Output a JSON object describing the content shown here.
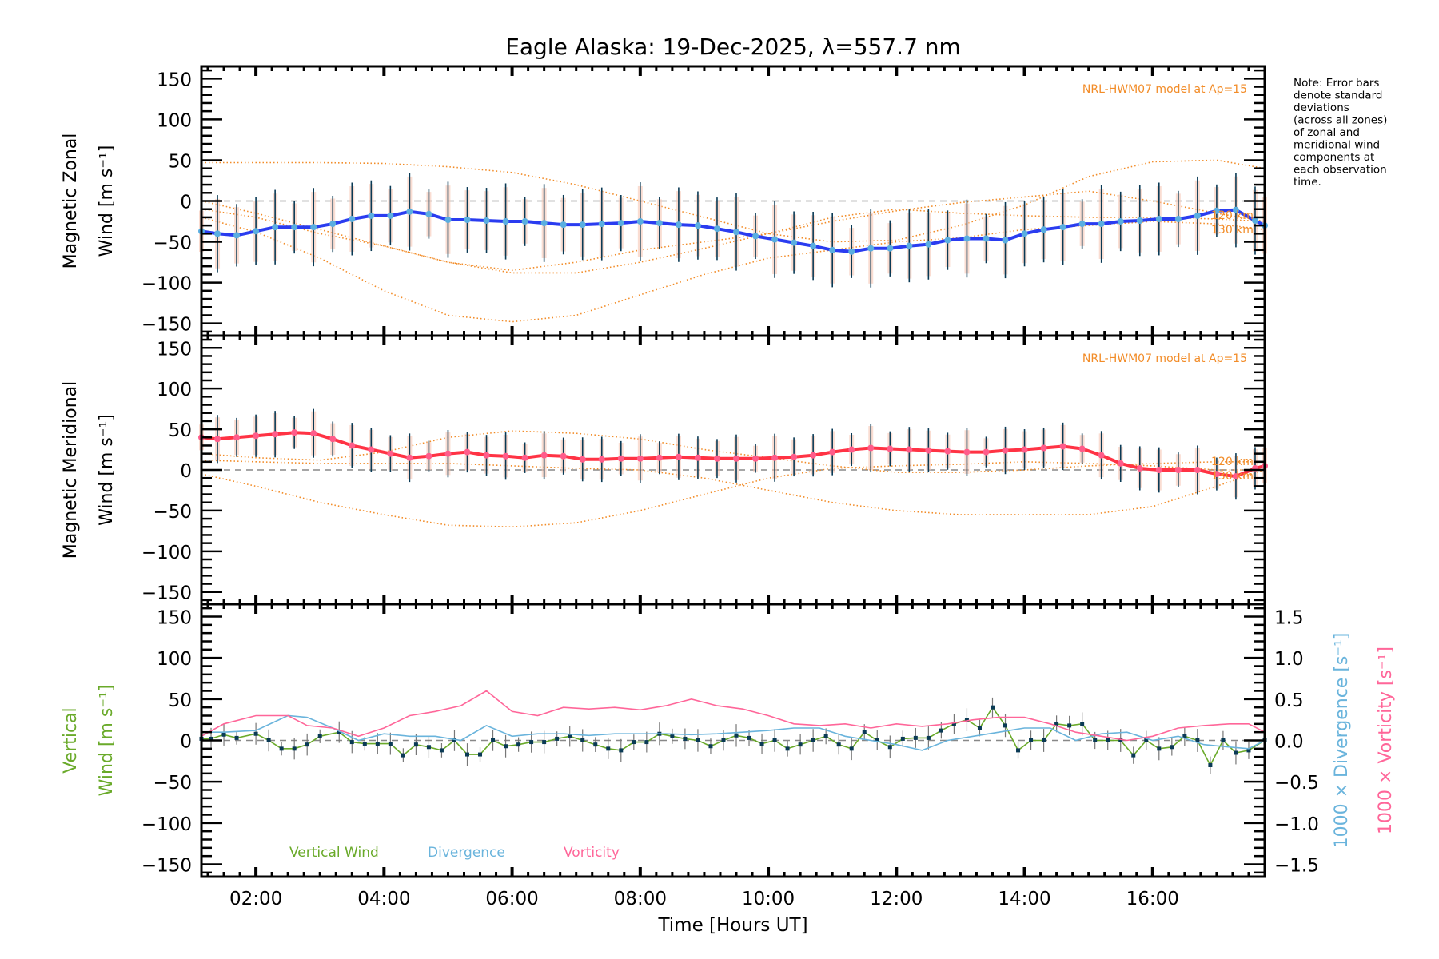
{
  "chart_data": [
    {
      "type": "line",
      "panel": "zonal",
      "title": "Eagle Alaska: 19-Dec-2025, λ=557.7 nm",
      "ylabel_line1": "Magnetic Zonal",
      "ylabel_line2": "Wind [m s⁻¹]",
      "ylim": [
        -165,
        165
      ],
      "yticks": [
        150,
        100,
        50,
        0,
        -50,
        -100,
        -150
      ],
      "model_label": "NRL-HWM07 model at Ap=15",
      "model_alt_labels": [
        "120 km",
        "130 km"
      ],
      "series": [
        {
          "name": "Zonal mean wind",
          "color": "#2a3cf0",
          "x": [
            1.15,
            1.4,
            1.7,
            2.0,
            2.3,
            2.6,
            2.9,
            3.2,
            3.5,
            3.8,
            4.1,
            4.4,
            4.7,
            5.0,
            5.3,
            5.6,
            5.9,
            6.2,
            6.5,
            6.8,
            7.1,
            7.4,
            7.7,
            8.0,
            8.3,
            8.6,
            8.9,
            9.2,
            9.5,
            9.8,
            10.1,
            10.4,
            10.7,
            11.0,
            11.3,
            11.6,
            11.9,
            12.2,
            12.5,
            12.8,
            13.1,
            13.4,
            13.7,
            14.0,
            14.3,
            14.6,
            14.9,
            15.2,
            15.5,
            15.8,
            16.1,
            16.4,
            16.7,
            17.0,
            17.3,
            17.6,
            17.75
          ],
          "y": [
            -37,
            -40,
            -42,
            -37,
            -32,
            -32,
            -32,
            -28,
            -22,
            -18,
            -18,
            -13,
            -16,
            -23,
            -23,
            -24,
            -25,
            -25,
            -27,
            -29,
            -29,
            -28,
            -27,
            -25,
            -27,
            -29,
            -30,
            -34,
            -38,
            -43,
            -47,
            -51,
            -55,
            -60,
            -62,
            -58,
            -58,
            -55,
            -53,
            -48,
            -46,
            -46,
            -48,
            -40,
            -35,
            -32,
            -28,
            -28,
            -25,
            -24,
            -22,
            -22,
            -18,
            -12,
            -11,
            -24,
            -30
          ]
        },
        {
          "name": "NRL-HWM07 120 km",
          "color": "#f28c28",
          "style": "dotted",
          "x": [
            1.15,
            2,
            3,
            4,
            5,
            6,
            7,
            8,
            9,
            10,
            11,
            12,
            13,
            14,
            15,
            16,
            17,
            17.75
          ],
          "y": [
            0,
            -15,
            -35,
            -55,
            -75,
            -88,
            -88,
            -75,
            -58,
            -40,
            -25,
            -12,
            -2,
            5,
            12,
            0,
            -15,
            -25
          ]
        },
        {
          "name": "NRL-HWM07 130 km",
          "color": "#f28c28",
          "style": "dotted",
          "x": [
            1.15,
            2,
            3,
            4,
            5,
            6,
            7,
            8,
            9,
            10,
            11,
            12,
            13,
            14,
            15,
            16,
            17,
            17.75
          ],
          "y": [
            -20,
            -38,
            -70,
            -110,
            -140,
            -148,
            -140,
            -115,
            -90,
            -70,
            -60,
            -50,
            -45,
            -35,
            -30,
            -25,
            -28,
            -35
          ]
        },
        {
          "name": "NRL-HWM07 upper",
          "color": "#f28c28",
          "style": "dotted",
          "x": [
            1.15,
            2,
            3,
            4,
            5,
            6,
            7,
            8,
            9,
            10,
            11,
            12,
            13,
            14,
            15,
            16,
            17,
            17.75
          ],
          "y": [
            47,
            47,
            47,
            46,
            42,
            35,
            20,
            0,
            -20,
            -40,
            -50,
            -48,
            -30,
            -5,
            30,
            48,
            50,
            40
          ]
        },
        {
          "name": "NRL-HWM07 lower",
          "color": "#f28c28",
          "style": "dotted",
          "x": [
            1.15,
            2,
            3,
            4,
            5,
            6,
            7,
            8,
            9,
            10,
            11,
            12,
            13,
            14,
            15,
            16,
            17,
            17.75
          ],
          "y": [
            -10,
            -20,
            -40,
            -55,
            -75,
            -85,
            -75,
            -60,
            -50,
            -40,
            -20,
            -10,
            -15,
            -18,
            -20,
            -20,
            -22,
            -25
          ]
        }
      ],
      "errorbar_halfwidth": 40
    },
    {
      "type": "line",
      "panel": "meridional",
      "ylabel_line1": "Magnetic Meridional",
      "ylabel_line2": "Wind [m s⁻¹]",
      "ylim": [
        -165,
        165
      ],
      "yticks": [
        150,
        100,
        50,
        0,
        -50,
        -100,
        -150
      ],
      "model_label": "NRL-HWM07 model at Ap=15",
      "model_alt_labels": [
        "120 km",
        "130 km"
      ],
      "series": [
        {
          "name": "Meridional mean wind",
          "color": "#ff3344",
          "x": [
            1.15,
            1.4,
            1.7,
            2.0,
            2.3,
            2.6,
            2.9,
            3.2,
            3.5,
            3.8,
            4.1,
            4.4,
            4.7,
            5.0,
            5.3,
            5.6,
            5.9,
            6.2,
            6.5,
            6.8,
            7.1,
            7.4,
            7.7,
            8.0,
            8.3,
            8.6,
            8.9,
            9.2,
            9.5,
            9.8,
            10.1,
            10.4,
            10.7,
            11.0,
            11.3,
            11.6,
            11.9,
            12.2,
            12.5,
            12.8,
            13.1,
            13.4,
            13.7,
            14.0,
            14.3,
            14.6,
            14.9,
            15.2,
            15.5,
            15.8,
            16.1,
            16.4,
            16.7,
            17.0,
            17.3,
            17.6,
            17.75
          ],
          "y": [
            40,
            38,
            40,
            42,
            44,
            46,
            45,
            38,
            30,
            25,
            20,
            15,
            17,
            20,
            22,
            18,
            17,
            15,
            18,
            17,
            13,
            13,
            14,
            14,
            15,
            16,
            15,
            14,
            14,
            14,
            15,
            16,
            18,
            22,
            25,
            27,
            26,
            25,
            24,
            23,
            22,
            22,
            24,
            25,
            27,
            29,
            26,
            18,
            8,
            2,
            0,
            0,
            0,
            -5,
            -8,
            2,
            5
          ]
        },
        {
          "name": "NRL-HWM07 120 km",
          "color": "#f28c28",
          "style": "dotted",
          "x": [
            1.15,
            2,
            3,
            4,
            5,
            6,
            7,
            8,
            9,
            10,
            11,
            12,
            13,
            14,
            15,
            16,
            17,
            17.75
          ],
          "y": [
            20,
            15,
            12,
            22,
            40,
            48,
            45,
            38,
            25,
            15,
            5,
            -3,
            -3,
            0,
            5,
            8,
            10,
            10
          ]
        },
        {
          "name": "NRL-HWM07 130 km",
          "color": "#f28c28",
          "style": "dotted",
          "x": [
            1.15,
            2,
            3,
            4,
            5,
            6,
            7,
            8,
            9,
            10,
            11,
            12,
            13,
            14,
            15,
            16,
            17,
            17.75
          ],
          "y": [
            -5,
            -20,
            -40,
            -55,
            -68,
            -70,
            -65,
            -50,
            -30,
            -10,
            2,
            5,
            7,
            10,
            8,
            5,
            0,
            0
          ]
        },
        {
          "name": "NRL-HWM07 upper",
          "color": "#f28c28",
          "style": "dotted",
          "x": [
            1.15,
            2,
            3,
            4,
            5,
            6,
            7,
            8,
            9,
            10,
            11,
            12,
            13,
            14,
            15,
            16,
            17,
            17.75
          ],
          "y": [
            12,
            10,
            8,
            8,
            8,
            5,
            2,
            0,
            -10,
            -25,
            -40,
            -50,
            -55,
            -55,
            -55,
            -45,
            -20,
            0
          ]
        }
      ],
      "errorbar_halfwidth": 25
    },
    {
      "type": "line",
      "panel": "vertical",
      "ylabel_line1": "Vertical",
      "ylabel_line2": "Wind [m s⁻¹]",
      "ylim": [
        -165,
        165
      ],
      "yticks": [
        150,
        100,
        50,
        0,
        -50,
        -100,
        -150
      ],
      "y2label_divergence": "1000 × Divergence [s⁻¹]",
      "y2label_vorticity": "1000 × Vorticity [s⁻¹]",
      "y2lim": [
        -1.65,
        1.65
      ],
      "y2ticks": [
        "1.5",
        "1.0",
        "0.5",
        "0.0",
        "−0.5",
        "−1.0",
        "−1.5"
      ],
      "xlabel": "Time [Hours UT]",
      "xlim": [
        1.15,
        17.75
      ],
      "xticks": [
        "02:00",
        "04:00",
        "06:00",
        "08:00",
        "10:00",
        "12:00",
        "14:00",
        "16:00"
      ],
      "legend": [
        "Vertical Wind",
        "Divergence",
        "Vorticity"
      ],
      "series": [
        {
          "name": "Vertical Wind",
          "color": "#6aaa2a",
          "x": [
            1.15,
            1.3,
            1.5,
            1.7,
            2.0,
            2.2,
            2.4,
            2.6,
            2.8,
            3.0,
            3.3,
            3.5,
            3.7,
            3.9,
            4.1,
            4.3,
            4.5,
            4.7,
            4.9,
            5.1,
            5.3,
            5.5,
            5.7,
            5.9,
            6.1,
            6.3,
            6.5,
            6.7,
            6.9,
            7.1,
            7.3,
            7.5,
            7.7,
            7.9,
            8.1,
            8.3,
            8.5,
            8.7,
            8.9,
            9.1,
            9.3,
            9.5,
            9.7,
            9.9,
            10.1,
            10.3,
            10.5,
            10.7,
            10.9,
            11.1,
            11.3,
            11.5,
            11.7,
            11.9,
            12.1,
            12.3,
            12.5,
            12.7,
            12.9,
            13.1,
            13.3,
            13.5,
            13.7,
            13.9,
            14.1,
            14.3,
            14.5,
            14.7,
            14.9,
            15.1,
            15.3,
            15.5,
            15.7,
            15.9,
            16.1,
            16.3,
            16.5,
            16.7,
            16.9,
            17.1,
            17.3,
            17.5,
            17.75
          ],
          "y": [
            2,
            2,
            7,
            3,
            8,
            0,
            -10,
            -10,
            -5,
            5,
            10,
            -2,
            -4,
            -4,
            -4,
            -18,
            -5,
            -8,
            -12,
            0,
            -17,
            -17,
            0,
            -7,
            -5,
            -2,
            -2,
            2,
            5,
            0,
            -5,
            -10,
            -12,
            -2,
            -2,
            8,
            5,
            2,
            0,
            -7,
            0,
            6,
            3,
            -4,
            0,
            -10,
            -5,
            0,
            5,
            -5,
            -10,
            10,
            0,
            -8,
            2,
            3,
            3,
            12,
            20,
            25,
            15,
            40,
            18,
            -12,
            0,
            0,
            20,
            18,
            20,
            0,
            0,
            0,
            -18,
            0,
            -10,
            -8,
            5,
            0,
            -30,
            0,
            -15,
            -12,
            0
          ]
        },
        {
          "name": "Divergence",
          "color": "#6ab4dc",
          "axis": "y2",
          "x": [
            1.15,
            1.5,
            2.0,
            2.5,
            2.8,
            3.2,
            3.6,
            4.0,
            4.4,
            4.8,
            5.2,
            5.6,
            6.0,
            6.4,
            6.8,
            7.2,
            7.6,
            8.0,
            8.4,
            8.8,
            9.2,
            9.6,
            10.0,
            10.4,
            10.8,
            11.2,
            11.6,
            12.0,
            12.4,
            12.8,
            13.2,
            13.6,
            14.0,
            14.4,
            14.8,
            15.2,
            15.6,
            16.0,
            16.4,
            16.8,
            17.2,
            17.5,
            17.75
          ],
          "y": [
            0.1,
            0.1,
            0.12,
            0.3,
            0.28,
            0.15,
            0.0,
            0.08,
            0.05,
            0.05,
            0.0,
            0.18,
            0.05,
            0.08,
            0.08,
            0.06,
            0.08,
            0.08,
            0.08,
            0.07,
            0.08,
            0.1,
            0.12,
            0.15,
            0.15,
            0.05,
            0.0,
            -0.05,
            -0.12,
            0.0,
            0.05,
            0.1,
            0.15,
            0.15,
            0.0,
            0.08,
            0.1,
            0.0,
            0.05,
            -0.05,
            -0.08,
            -0.1,
            0.0
          ]
        },
        {
          "name": "Vorticity",
          "color": "#ff6699",
          "axis": "y2",
          "x": [
            1.15,
            1.5,
            2.0,
            2.5,
            2.8,
            3.2,
            3.6,
            4.0,
            4.4,
            4.8,
            5.2,
            5.6,
            6.0,
            6.4,
            6.8,
            7.2,
            7.6,
            8.0,
            8.4,
            8.8,
            9.2,
            9.6,
            10.0,
            10.4,
            10.8,
            11.2,
            11.6,
            12.0,
            12.4,
            12.8,
            13.2,
            13.6,
            14.0,
            14.4,
            14.8,
            15.2,
            15.6,
            16.0,
            16.4,
            16.8,
            17.2,
            17.5,
            17.75
          ],
          "y": [
            0.05,
            0.2,
            0.3,
            0.3,
            0.18,
            0.15,
            0.05,
            0.15,
            0.3,
            0.35,
            0.42,
            0.6,
            0.35,
            0.3,
            0.4,
            0.38,
            0.4,
            0.37,
            0.42,
            0.5,
            0.42,
            0.38,
            0.3,
            0.2,
            0.18,
            0.2,
            0.15,
            0.2,
            0.17,
            0.2,
            0.25,
            0.28,
            0.28,
            0.2,
            0.1,
            0.05,
            0.0,
            0.05,
            0.15,
            0.18,
            0.2,
            0.2,
            0.1
          ]
        }
      ]
    }
  ],
  "note": [
    "Note: Error bars",
    "denote standard",
    "deviations",
    "(across all zones)",
    "of zonal and",
    "meridional wind",
    "components at",
    "each observation",
    "time."
  ]
}
